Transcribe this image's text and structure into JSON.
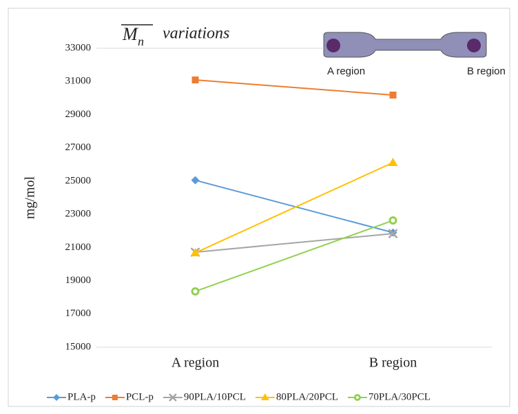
{
  "chart_data": {
    "type": "line",
    "title_symbol": "M",
    "title_subscript": "n",
    "title": "variations",
    "y_label": "mg/mol",
    "categories": [
      "A region",
      "B region"
    ],
    "series": [
      {
        "name": "PLA-p",
        "color": "#5b9bd5",
        "marker": "diamond",
        "values": [
          25050,
          21900
        ]
      },
      {
        "name": "PCL-p",
        "color": "#ed7d31",
        "marker": "square",
        "values": [
          31090,
          30180
        ]
      },
      {
        "name": "90PLA/10PCL",
        "color": "#a5a5a5",
        "marker": "x",
        "values": [
          20720,
          21840
        ]
      },
      {
        "name": "80PLA/20PCL",
        "color": "#ffc000",
        "marker": "triangle",
        "values": [
          20680,
          26115
        ]
      },
      {
        "name": "70PLA/30PCL",
        "color": "#92d050",
        "marker": "circle",
        "values": [
          18360,
          22630
        ]
      }
    ],
    "ylim": [
      15000,
      33000
    ],
    "yticks": [
      15000,
      17000,
      19000,
      21000,
      23000,
      25000,
      27000,
      29000,
      31000,
      33000
    ],
    "grid": false,
    "legend": "bottom",
    "annotations": [
      "A region",
      "B region"
    ]
  }
}
